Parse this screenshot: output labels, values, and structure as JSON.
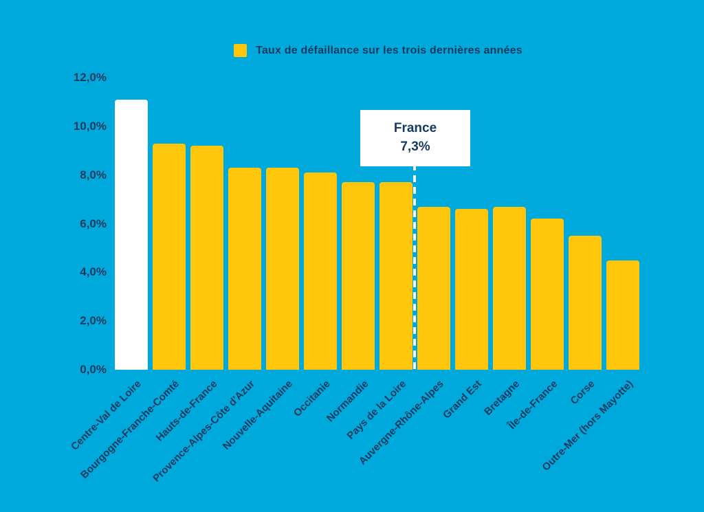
{
  "colors": {
    "background": "#00A9DC",
    "bar": "#FFC60B",
    "highlight_bar": "#FFFFFF",
    "text": "#173A60",
    "france_line": "#FFFFFF",
    "france_box_bg": "#FFFFFF"
  },
  "legend": {
    "label": "Taux de défaillance sur les trois dernières années"
  },
  "y_axis": {
    "ticks": [
      "12,0%",
      "10,0%",
      "8,0%",
      "6,0%",
      "4,0%",
      "2,0%",
      "0,0%"
    ]
  },
  "france": {
    "label": "France",
    "value_label": "7,3%",
    "value": 7.3,
    "line_after_category_index": 7
  },
  "chart_data": {
    "type": "bar",
    "title": "Taux de défaillance sur les trois dernières années",
    "categories": [
      "Centre-Val de Loire",
      "Bourgogne-Franche-Comté",
      "Hauts-de-France",
      "Provence-Alpes-Côte d'Azur",
      "Nouvelle-Aquitaine",
      "Occitanie",
      "Normandie",
      "Pays de la Loire",
      "Auvergne-Rhône-Alpes",
      "Grand Est",
      "Bretagne",
      "Île-de-France",
      "Corse",
      "Outre-Mer (hors Mayotte)"
    ],
    "values": [
      11.1,
      9.3,
      9.2,
      8.3,
      8.3,
      8.1,
      7.7,
      7.7,
      6.7,
      6.6,
      6.7,
      6.2,
      5.5,
      4.5
    ],
    "highlight_index": 0,
    "xlabel": "",
    "ylabel": "",
    "ylim": [
      0,
      12
    ],
    "grid": false,
    "legend_position": "top-center",
    "annotation": "France 7,3% (ligne blanche en pointillés entre Pays de la Loire et Auvergne-Rhône-Alpes)"
  }
}
